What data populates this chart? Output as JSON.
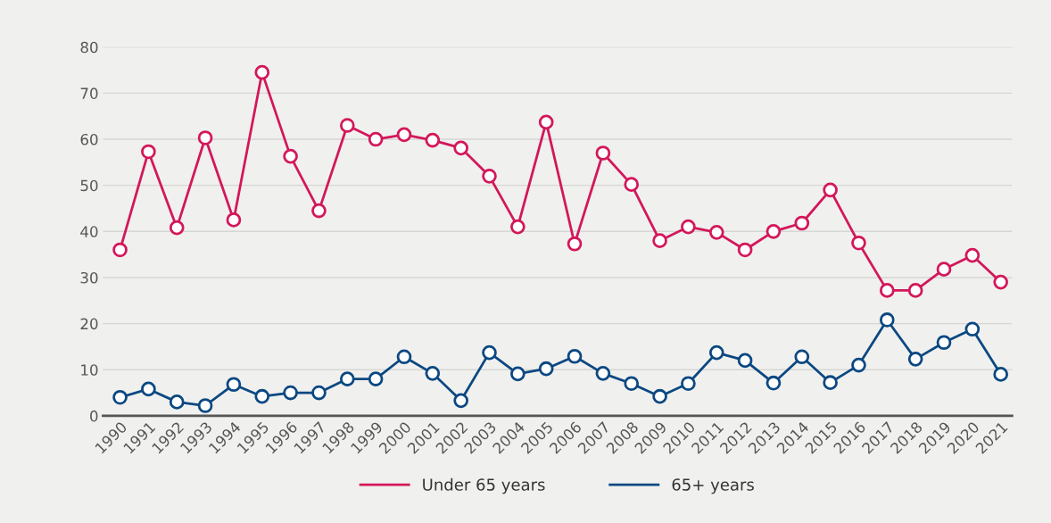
{
  "chart_data": {
    "type": "line",
    "categories": [
      "1990",
      "1991",
      "1992",
      "1993",
      "1994",
      "1995",
      "1996",
      "1997",
      "1998",
      "1999",
      "2000",
      "2001",
      "2002",
      "2003",
      "2004",
      "2005",
      "2006",
      "2007",
      "2008",
      "2009",
      "2010",
      "2011",
      "2012",
      "2013",
      "2014",
      "2015",
      "2016",
      "2017",
      "2018",
      "2019",
      "2020",
      "2021"
    ],
    "series": [
      {
        "name": "Under 65 years",
        "color": "#d3175b",
        "values": [
          36,
          57.3,
          40.8,
          60.3,
          42.5,
          74.5,
          56.3,
          44.5,
          63,
          60,
          61,
          59.8,
          58.1,
          52,
          41,
          63.7,
          37.3,
          57,
          50.2,
          38,
          41,
          39.8,
          36,
          40,
          41.8,
          49,
          37.5,
          27.2,
          27.2,
          31.8,
          34.8,
          29
        ]
      },
      {
        "name": "65+ years",
        "color": "#0b4882",
        "values": [
          4,
          5.8,
          3,
          2.2,
          6.8,
          4.2,
          5,
          5,
          8,
          8,
          12.8,
          9.2,
          3.3,
          13.7,
          9.1,
          10.2,
          12.9,
          9.2,
          7,
          4.2,
          7,
          13.7,
          12,
          7.1,
          12.8,
          7.2,
          11,
          20.8,
          12.3,
          15.9,
          18.8,
          9
        ]
      }
    ],
    "ylim": [
      0,
      80
    ],
    "yticks": [
      0,
      10,
      20,
      30,
      40,
      50,
      60,
      70,
      80
    ],
    "grid": "y",
    "legend": "bottom",
    "marker": "circle",
    "line_style": "solid"
  }
}
